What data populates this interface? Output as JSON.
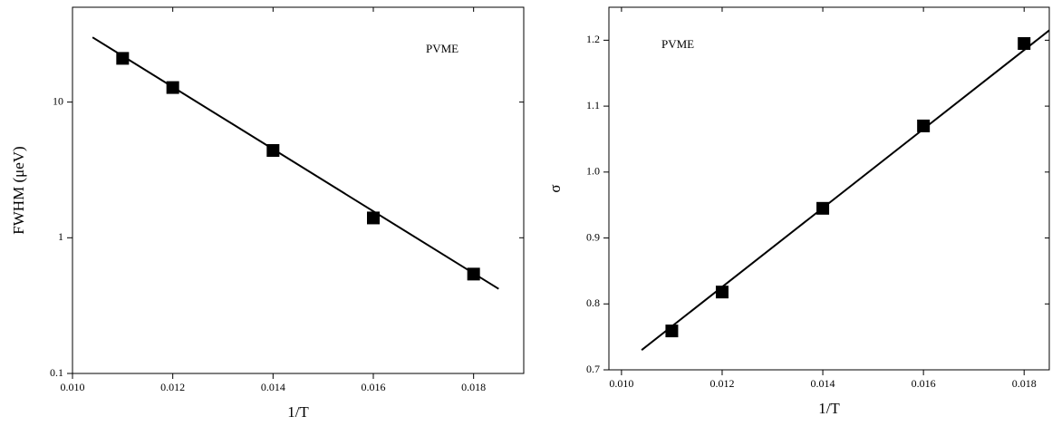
{
  "chart_data": [
    {
      "type": "scatter",
      "x_label": "1/T",
      "y_label": "FWHM (μeV)",
      "annotation": "PVME",
      "log_y": true,
      "xlim": [
        0.01,
        0.019
      ],
      "xticks": [
        {
          "value": 0.01,
          "label": "0.010"
        },
        {
          "value": 0.012,
          "label": "0.012"
        },
        {
          "value": 0.014,
          "label": "0.014"
        },
        {
          "value": 0.016,
          "label": "0.016"
        },
        {
          "value": 0.018,
          "label": "0.018"
        }
      ],
      "ylim": [
        0.1,
        50
      ],
      "yticks": [
        0.1,
        1,
        10
      ],
      "series": [
        {
          "style": "marker",
          "color": "#000000",
          "x": [
            0.011,
            0.012,
            0.014,
            0.016,
            0.018
          ],
          "values": [
            21,
            12.8,
            4.4,
            1.4,
            0.54
          ]
        },
        {
          "style": "line",
          "color": "#000000",
          "x": [
            0.0104,
            0.0185
          ],
          "values": [
            30,
            0.42
          ]
        }
      ]
    },
    {
      "type": "scatter",
      "x_label": "1/T",
      "y_label": "σ",
      "annotation": "PVME",
      "log_y": false,
      "xlim": [
        0.00975,
        0.0185
      ],
      "xticks": [
        {
          "value": 0.01,
          "label": "0.010"
        },
        {
          "value": 0.012,
          "label": "0.012"
        },
        {
          "value": 0.014,
          "label": "0.014"
        },
        {
          "value": 0.016,
          "label": "0.016"
        },
        {
          "value": 0.018,
          "label": "0.018"
        }
      ],
      "ylim": [
        0.7,
        1.25
      ],
      "yticks": [
        0.7,
        0.8,
        0.9,
        {
          "value": 1.0,
          "label": "1.0"
        },
        1.1,
        1.2
      ],
      "series": [
        {
          "style": "marker",
          "color": "#000000",
          "x": [
            0.011,
            0.012,
            0.014,
            0.016,
            0.018
          ],
          "values": [
            0.759,
            0.818,
            0.945,
            1.07,
            1.195
          ]
        },
        {
          "style": "line",
          "color": "#000000",
          "x": [
            0.0104,
            0.0185
          ],
          "values": [
            0.73,
            1.215
          ]
        }
      ]
    }
  ]
}
